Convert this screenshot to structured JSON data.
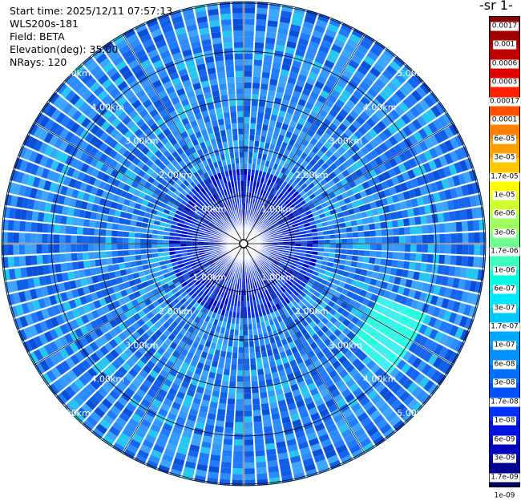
{
  "info": {
    "start_time": "Start time: 2025/12/11 07:57:13",
    "instrument": "WLS200s-181",
    "field": "Field: BETA",
    "elevation": "Elevation(deg): 35.00",
    "nrays": "NRays: 120"
  },
  "colorbar": {
    "title_fragment": "-1 sr-",
    "labels": [
      "0.0017",
      "0.001",
      "0.0006",
      "0.0003",
      "0.00017",
      "0.0001",
      "6e-05",
      "3e-05",
      "1.7e-05",
      "1e-05",
      "6e-06",
      "3e-06",
      "1.7e-06",
      "1e-06",
      "6e-07",
      "3e-07",
      "1.7e-07",
      "1e-07",
      "6e-08",
      "3e-08",
      "1.7e-08",
      "1e-08",
      "6e-09",
      "3e-09",
      "1.7e-09",
      "1e-09"
    ],
    "colors": [
      "#8b0000",
      "#a00000",
      "#c00000",
      "#e00000",
      "#ff2000",
      "#ff5000",
      "#ff7f00",
      "#ffa000",
      "#ffc800",
      "#ffff00",
      "#d0ff30",
      "#a0ff60",
      "#70ff90",
      "#40ffc0",
      "#00ffe0",
      "#00e8ff",
      "#00c8ff",
      "#00a8ff",
      "#0090ff",
      "#0070ff",
      "#0050ff",
      "#0030ff",
      "#0010e0",
      "#0000c0",
      "#000090",
      "#000060"
    ]
  },
  "plot": {
    "range_labels": [
      "1.00km",
      "2.00km",
      "3.00km",
      "4.00km",
      "5.00km"
    ],
    "palette": [
      "#1f7aff",
      "#2b8cff",
      "#3399ff",
      "#1565f0",
      "#0a4fd9",
      "#3ca6ff",
      "#26c6f2",
      "#0f5fe8"
    ]
  }
}
